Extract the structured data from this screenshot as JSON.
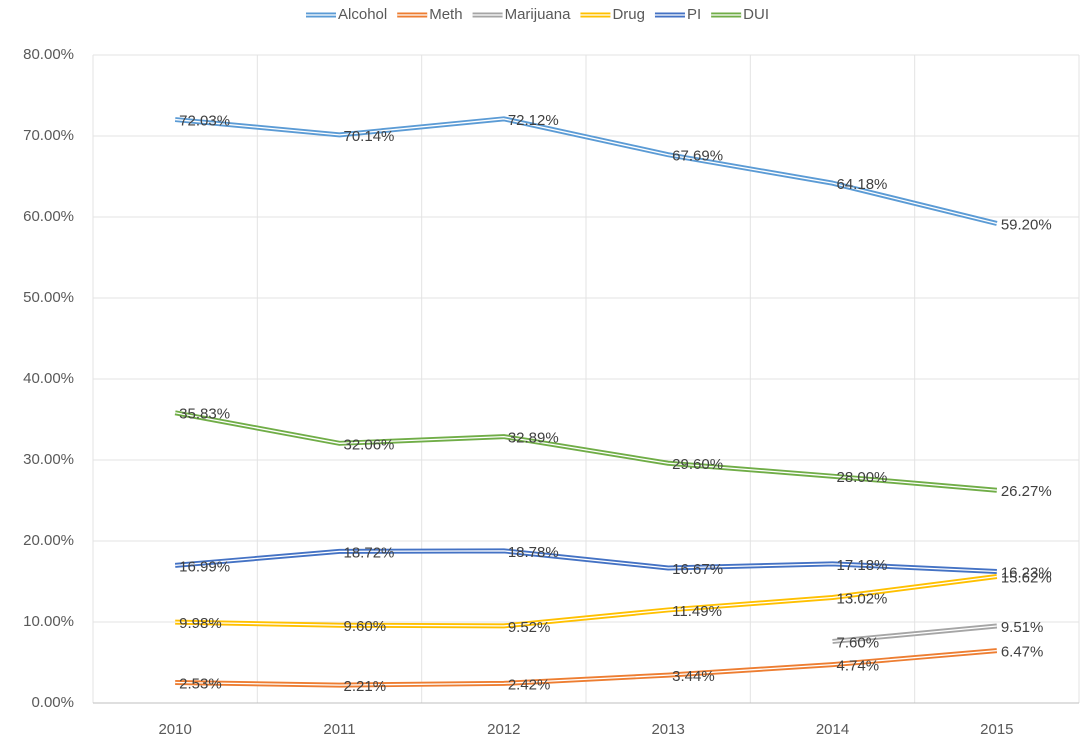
{
  "chart_data": {
    "type": "line",
    "categories": [
      "2010",
      "2011",
      "2012",
      "2013",
      "2014",
      "2015"
    ],
    "series": [
      {
        "name": "Alcohol",
        "color": "#5b9bd5",
        "values": [
          72.03,
          70.14,
          72.12,
          67.69,
          64.18,
          59.2
        ],
        "value_labels": [
          "72.03%",
          "70.14%",
          "72.12%",
          "67.69%",
          "64.18%",
          "59.20%"
        ]
      },
      {
        "name": "Meth",
        "color": "#ed7d31",
        "values": [
          2.53,
          2.21,
          2.42,
          3.44,
          4.74,
          6.47
        ],
        "value_labels": [
          "2.53%",
          "2.21%",
          "2.42%",
          "3.44%",
          "4.74%",
          "6.47%"
        ]
      },
      {
        "name": "Marijuana",
        "color": "#a5a5a5",
        "values": [
          null,
          null,
          null,
          null,
          7.6,
          9.51
        ],
        "value_labels": [
          null,
          null,
          null,
          null,
          "7.60%",
          "9.51%"
        ]
      },
      {
        "name": "Drug",
        "color": "#ffc000",
        "values": [
          9.98,
          9.6,
          9.52,
          11.49,
          13.02,
          15.62
        ],
        "value_labels": [
          "9.98%",
          "9.60%",
          "9.52%",
          "11.49%",
          "13.02%",
          "15.62%"
        ]
      },
      {
        "name": "PI",
        "color": "#4472c4",
        "values": [
          16.99,
          18.72,
          18.78,
          16.67,
          17.18,
          16.23
        ],
        "value_labels": [
          "16.99%",
          "18.72%",
          "18.78%",
          "16.67%",
          "17.18%",
          "16.23%"
        ]
      },
      {
        "name": "DUI",
        "color": "#70ad47",
        "values": [
          35.83,
          32.06,
          32.89,
          29.6,
          28.0,
          26.27
        ],
        "value_labels": [
          "35.83%",
          "32.06%",
          "32.89%",
          "29.60%",
          "28.00%",
          "26.27%"
        ]
      }
    ],
    "ylim": [
      0,
      80
    ],
    "yticks": [
      {
        "value": 0,
        "label": "0.00%"
      },
      {
        "value": 10,
        "label": "10.00%"
      },
      {
        "value": 20,
        "label": "20.00%"
      },
      {
        "value": 30,
        "label": "30.00%"
      },
      {
        "value": 40,
        "label": "40.00%"
      },
      {
        "value": 50,
        "label": "50.00%"
      },
      {
        "value": 60,
        "label": "60.00%"
      },
      {
        "value": 70,
        "label": "70.00%"
      },
      {
        "value": 80,
        "label": "80.00%"
      }
    ],
    "grid": true,
    "legend": "top"
  }
}
